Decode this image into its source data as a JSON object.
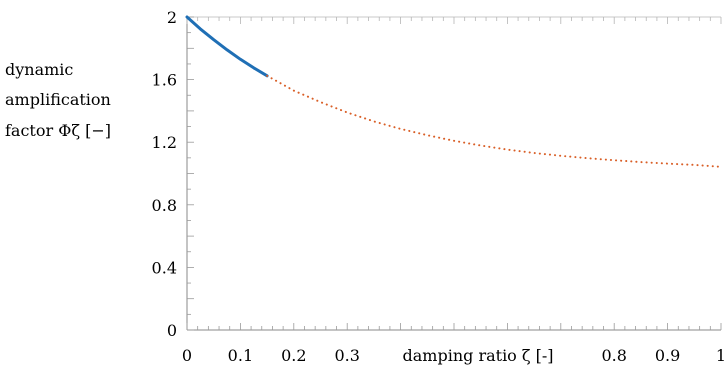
{
  "chart_data": {
    "type": "line",
    "ylabel_lines": [
      "dynamic",
      "amplification",
      "factor Φζ [−]"
    ],
    "xlabel": "damping ratio ζ  [-]",
    "xlim": [
      0,
      1
    ],
    "ylim": [
      0,
      2
    ],
    "x_ticks": [
      {
        "value": 0,
        "label": "0"
      },
      {
        "value": 0.1,
        "label": "0.1"
      },
      {
        "value": 0.2,
        "label": "0.2"
      },
      {
        "value": 0.3,
        "label": "0.3"
      },
      {
        "value": 0.8,
        "label": "0.8"
      },
      {
        "value": 0.9,
        "label": "0.9"
      },
      {
        "value": 1,
        "label": "1"
      }
    ],
    "y_ticks": [
      {
        "value": 0,
        "label": "0"
      },
      {
        "value": 0.4,
        "label": "0.4"
      },
      {
        "value": 0.8,
        "label": "0.8"
      },
      {
        "value": 1.2,
        "label": "1.2"
      },
      {
        "value": 1.6,
        "label": "1.6"
      },
      {
        "value": 2,
        "label": "2"
      }
    ],
    "grid": false,
    "series": [
      {
        "style": "solid",
        "color": "#1f6fb5",
        "x": [
          0,
          0.025,
          0.05,
          0.075,
          0.1,
          0.125,
          0.15
        ],
        "y": [
          2.0,
          1.924,
          1.855,
          1.79,
          1.73,
          1.675,
          1.624
        ]
      },
      {
        "style": "dotted",
        "color": "#d95f27",
        "x": [
          0.15,
          0.2,
          0.25,
          0.3,
          0.35,
          0.4,
          0.45,
          0.5,
          0.55,
          0.6,
          0.65,
          0.7,
          0.75,
          0.8,
          0.85,
          0.9,
          0.95,
          1.0
        ],
        "y": [
          1.624,
          1.53,
          1.456,
          1.39,
          1.333,
          1.285,
          1.245,
          1.209,
          1.179,
          1.153,
          1.131,
          1.113,
          1.098,
          1.085,
          1.073,
          1.063,
          1.055,
          1.043
        ]
      }
    ]
  }
}
